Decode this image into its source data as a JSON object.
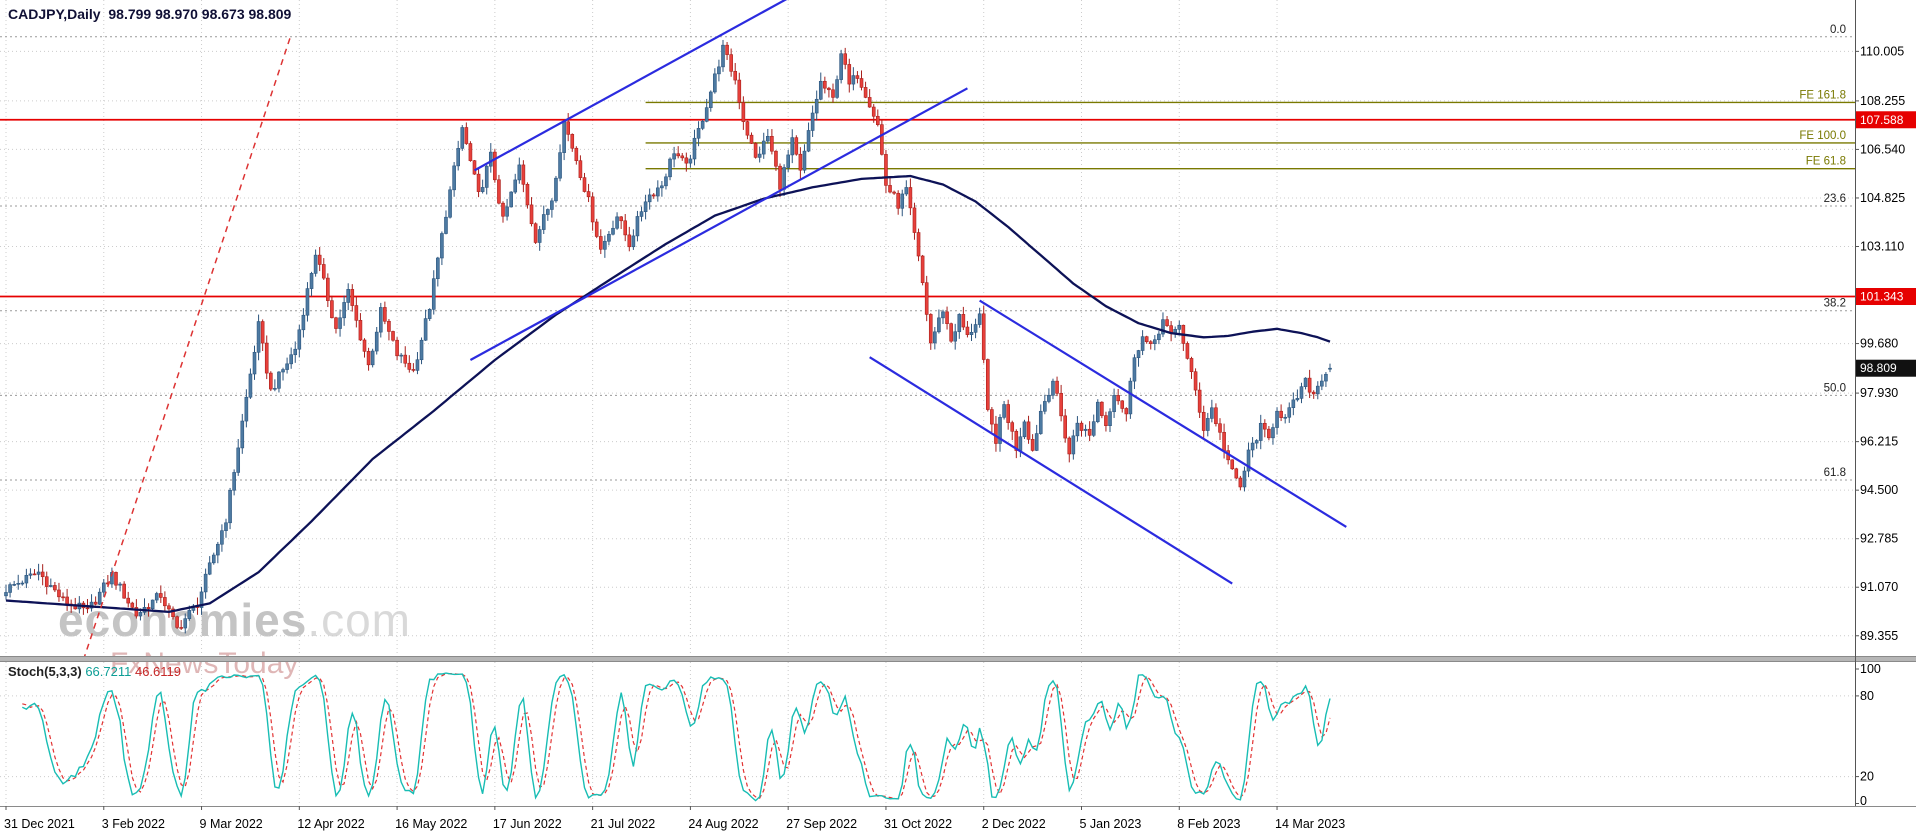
{
  "window": {
    "symbol_ohlc_line": "CADJPY,Daily  98.799 98.970 98.673 98.809"
  },
  "watermark": {
    "brand": "economies",
    "brand_suffix": ".com",
    "subtitle": "FxNewsToday"
  },
  "indicator": {
    "name": "Stoch(5,3,3)",
    "value_k": "66.7211",
    "value_d": "46.6119"
  },
  "colors": {
    "bull": "#4d7aa2",
    "bull_stroke": "#2c557e",
    "bear": "#e7403b",
    "bear_stroke": "#a8201c",
    "ma": "#0d1257",
    "trendline": "#2b2bdf",
    "dashed_red": "#dd3333",
    "red_level": "#e60000",
    "fe_olive": "#797900",
    "fib_line": "#9a9a9a",
    "fib_label": "#222222",
    "grid": "#cccccc",
    "axis_text": "#000000",
    "stoch_k": "#18bdb4",
    "stoch_d": "#e23434",
    "current_price_bg": "#111111",
    "separator": "#b6b6b6"
  },
  "chart_data": {
    "type": "candlestick",
    "symbol": "CADJPY",
    "timeframe": "Daily",
    "quote": {
      "open": 98.799,
      "high": 98.97,
      "low": 98.673,
      "close": 98.809
    },
    "bars_total": 326,
    "x_ticks": [
      {
        "label": "31 Dec 2021",
        "bar": 0
      },
      {
        "label": "3 Feb 2022",
        "bar": 24
      },
      {
        "label": "9 Mar 2022",
        "bar": 48
      },
      {
        "label": "12 Apr 2022",
        "bar": 72
      },
      {
        "label": "16 May 2022",
        "bar": 96
      },
      {
        "label": "17 Jun 2022",
        "bar": 120
      },
      {
        "label": "21 Jul 2022",
        "bar": 144
      },
      {
        "label": "24 Aug 2022",
        "bar": 168
      },
      {
        "label": "27 Sep 2022",
        "bar": 192
      },
      {
        "label": "31 Oct 2022",
        "bar": 216
      },
      {
        "label": "2 Dec 2022",
        "bar": 240
      },
      {
        "label": "5 Jan 2023",
        "bar": 264
      },
      {
        "label": "8 Feb 2023",
        "bar": 288
      },
      {
        "label": "14 Mar 2023",
        "bar": 312
      }
    ],
    "price_axis": {
      "ylim": [
        88.64,
        111.82
      ],
      "labels": [
        "110.005",
        "108.255",
        "106.540",
        "104.825",
        "103.110",
        "99.680",
        "97.930",
        "96.215",
        "94.500",
        "92.785",
        "91.070",
        "89.355"
      ],
      "red_levels": [
        107.588,
        101.343
      ],
      "current_price": 98.809
    },
    "close_waypoints": [
      [
        0,
        91.0
      ],
      [
        8,
        91.6
      ],
      [
        14,
        90.6
      ],
      [
        20,
        90.2
      ],
      [
        26,
        91.5
      ],
      [
        32,
        90.1
      ],
      [
        38,
        90.8
      ],
      [
        42,
        89.6
      ],
      [
        47,
        90.5
      ],
      [
        54,
        93.5
      ],
      [
        62,
        100.3
      ],
      [
        65,
        98.0
      ],
      [
        71,
        99.5
      ],
      [
        76,
        102.9
      ],
      [
        81,
        100.2
      ],
      [
        84,
        101.5
      ],
      [
        89,
        98.9
      ],
      [
        92,
        100.8
      ],
      [
        96,
        99.3
      ],
      [
        100,
        98.7
      ],
      [
        104,
        101.0
      ],
      [
        108,
        104.3
      ],
      [
        112,
        107.3
      ],
      [
        116,
        104.9
      ],
      [
        119,
        106.3
      ],
      [
        122,
        104.0
      ],
      [
        126,
        105.9
      ],
      [
        130,
        103.4
      ],
      [
        134,
        104.8
      ],
      [
        137,
        107.5
      ],
      [
        140,
        106.2
      ],
      [
        143,
        104.7
      ],
      [
        146,
        103.0
      ],
      [
        150,
        104.2
      ],
      [
        153,
        103.2
      ],
      [
        157,
        104.8
      ],
      [
        161,
        105.3
      ],
      [
        164,
        106.5
      ],
      [
        167,
        105.9
      ],
      [
        170,
        107.2
      ],
      [
        173,
        108.6
      ],
      [
        176,
        110.1
      ],
      [
        179,
        109.0
      ],
      [
        181,
        107.6
      ],
      [
        184,
        106.2
      ],
      [
        187,
        107.0
      ],
      [
        190,
        105.3
      ],
      [
        193,
        106.8
      ],
      [
        195,
        105.7
      ],
      [
        198,
        107.8
      ],
      [
        200,
        108.9
      ],
      [
        203,
        108.3
      ],
      [
        205,
        110.0
      ],
      [
        207,
        108.8
      ],
      [
        209,
        109.2
      ],
      [
        212,
        108.2
      ],
      [
        214,
        107.4
      ],
      [
        216,
        105.3
      ],
      [
        219,
        104.6
      ],
      [
        221,
        105.1
      ],
      [
        223,
        103.5
      ],
      [
        225,
        101.8
      ],
      [
        227,
        99.7
      ],
      [
        230,
        100.9
      ],
      [
        232,
        99.8
      ],
      [
        234,
        100.6
      ],
      [
        236,
        99.9
      ],
      [
        239,
        100.7
      ],
      [
        241,
        97.2
      ],
      [
        243,
        96.3
      ],
      [
        245,
        97.5
      ],
      [
        248,
        96.0
      ],
      [
        250,
        97.0
      ],
      [
        252,
        95.9
      ],
      [
        254,
        97.3
      ],
      [
        257,
        98.4
      ],
      [
        259,
        97.1
      ],
      [
        261,
        95.8
      ],
      [
        263,
        96.9
      ],
      [
        266,
        96.4
      ],
      [
        268,
        97.6
      ],
      [
        270,
        96.8
      ],
      [
        272,
        98.0
      ],
      [
        275,
        97.2
      ],
      [
        277,
        99.3
      ],
      [
        279,
        99.9
      ],
      [
        281,
        99.5
      ],
      [
        284,
        100.5
      ],
      [
        286,
        99.9
      ],
      [
        288,
        100.4
      ],
      [
        290,
        99.1
      ],
      [
        292,
        98.0
      ],
      [
        294,
        96.7
      ],
      [
        296,
        97.4
      ],
      [
        299,
        96.0
      ],
      [
        301,
        95.1
      ],
      [
        303,
        94.6
      ],
      [
        305,
        95.8
      ],
      [
        308,
        96.7
      ],
      [
        310,
        96.3
      ],
      [
        312,
        97.4
      ],
      [
        314,
        97.0
      ],
      [
        317,
        97.8
      ],
      [
        319,
        98.3
      ],
      [
        321,
        97.9
      ],
      [
        323,
        98.5
      ],
      [
        325,
        98.809
      ]
    ],
    "ma_waypoints": [
      [
        0,
        90.6
      ],
      [
        20,
        90.4
      ],
      [
        40,
        90.2
      ],
      [
        50,
        90.5
      ],
      [
        62,
        91.6
      ],
      [
        75,
        93.4
      ],
      [
        90,
        95.6
      ],
      [
        105,
        97.3
      ],
      [
        120,
        99.1
      ],
      [
        135,
        100.7
      ],
      [
        150,
        102.1
      ],
      [
        162,
        103.2
      ],
      [
        174,
        104.2
      ],
      [
        186,
        104.8
      ],
      [
        198,
        105.2
      ],
      [
        210,
        105.5
      ],
      [
        222,
        105.6
      ],
      [
        230,
        105.3
      ],
      [
        238,
        104.7
      ],
      [
        246,
        103.8
      ],
      [
        254,
        102.8
      ],
      [
        262,
        101.8
      ],
      [
        270,
        101.0
      ],
      [
        278,
        100.4
      ],
      [
        286,
        100.05
      ],
      [
        294,
        99.9
      ],
      [
        300,
        99.95
      ],
      [
        306,
        100.1
      ],
      [
        312,
        100.2
      ],
      [
        318,
        100.05
      ],
      [
        322,
        99.9
      ],
      [
        325,
        99.75
      ]
    ],
    "trendlines": [
      {
        "name": "ascending-channel-upper",
        "from": [
          115,
          105.8
        ],
        "to": [
          196,
          112.2
        ],
        "style": "solid"
      },
      {
        "name": "ascending-channel-lower",
        "from": [
          114,
          99.1
        ],
        "to": [
          236,
          108.7
        ],
        "style": "solid"
      },
      {
        "name": "descending-channel-upper",
        "from": [
          239,
          101.2
        ],
        "to": [
          329,
          93.2
        ],
        "style": "solid"
      },
      {
        "name": "descending-channel-lower",
        "from": [
          212,
          99.2
        ],
        "to": [
          301,
          91.2
        ],
        "style": "solid"
      },
      {
        "name": "steep-resistance-dashed",
        "from": [
          19,
          88.5
        ],
        "to": [
          70,
          110.6
        ],
        "style": "dashed"
      }
    ],
    "fib_retracement": [
      {
        "label": "0.0",
        "price": 110.52
      },
      {
        "label": "23.6",
        "price": 104.54
      },
      {
        "label": "38.2",
        "price": 100.84
      },
      {
        "label": "50.0",
        "price": 97.85
      },
      {
        "label": "61.8",
        "price": 94.86
      }
    ],
    "fib_expansion": {
      "start_bar": 157,
      "levels": [
        {
          "label": "FE 161.8",
          "price": 108.2
        },
        {
          "label": "FE 100.0",
          "price": 106.77
        },
        {
          "label": "FE 61.8",
          "price": 105.86
        }
      ]
    },
    "stochastic": {
      "k": 5,
      "d": 3,
      "slowing": 3,
      "axis_labels": [
        100,
        80,
        20,
        0
      ],
      "level_lines": [
        80,
        20
      ],
      "ylim": [
        0,
        100
      ]
    }
  }
}
